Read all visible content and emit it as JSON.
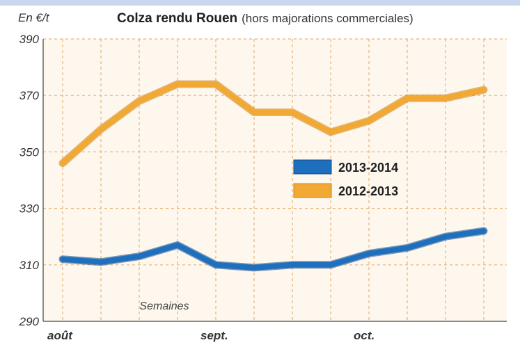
{
  "chart_data": {
    "type": "line",
    "title": "Colza rendu Rouen",
    "subtitle": "(hors majorations commerciales)",
    "ylabel": "En €/t",
    "xlabel": "Semaines",
    "ylim": [
      290,
      390
    ],
    "yticks": [
      390,
      370,
      350,
      330,
      310,
      290
    ],
    "x_tick_labels": [
      {
        "label": "août",
        "index": 0
      },
      {
        "label": "sept.",
        "index": 4
      },
      {
        "label": "oct.",
        "index": 8
      }
    ],
    "grid": true,
    "legend_position": "center-right",
    "series": [
      {
        "name": "2013-2014",
        "color": "#1f6fbf",
        "values": [
          312,
          311,
          313,
          317,
          310,
          309,
          310,
          310,
          314,
          316,
          320,
          322
        ]
      },
      {
        "name": "2012-2013",
        "color": "#f2a933",
        "values": [
          346,
          358,
          368,
          374,
          374,
          364,
          364,
          357,
          361,
          369,
          369,
          372
        ]
      }
    ]
  }
}
